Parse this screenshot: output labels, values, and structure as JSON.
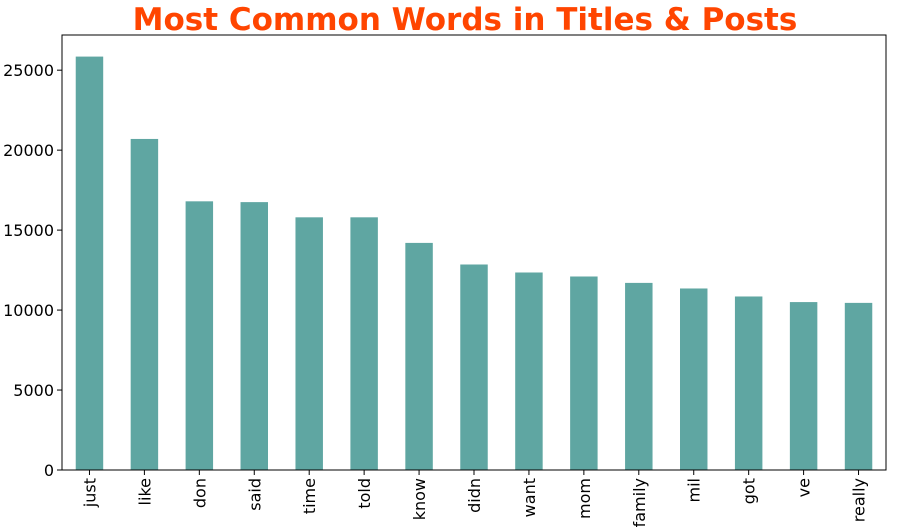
{
  "colors": {
    "title": "#FF4500",
    "bar": "#5FA6A2",
    "axis": "#000000",
    "background": "#ffffff"
  },
  "chart_data": {
    "type": "bar",
    "title": "Most Common Words in Titles & Posts",
    "xlabel": "",
    "ylabel": "",
    "categories": [
      "just",
      "like",
      "don",
      "said",
      "time",
      "told",
      "know",
      "didn",
      "want",
      "mom",
      "family",
      "mil",
      "got",
      "ve",
      "really"
    ],
    "values": [
      25850,
      20700,
      16800,
      16750,
      15800,
      15800,
      14200,
      12850,
      12350,
      12100,
      11700,
      11350,
      10850,
      10500,
      10450
    ],
    "ylim": [
      0,
      27200
    ],
    "yticks": [
      0,
      5000,
      10000,
      15000,
      20000,
      25000
    ],
    "ytick_labels": [
      "0",
      "5000",
      "10000",
      "15000",
      "20000",
      "25000"
    ],
    "grid": false,
    "legend": "none",
    "x_tick_rotation": "vertical"
  }
}
